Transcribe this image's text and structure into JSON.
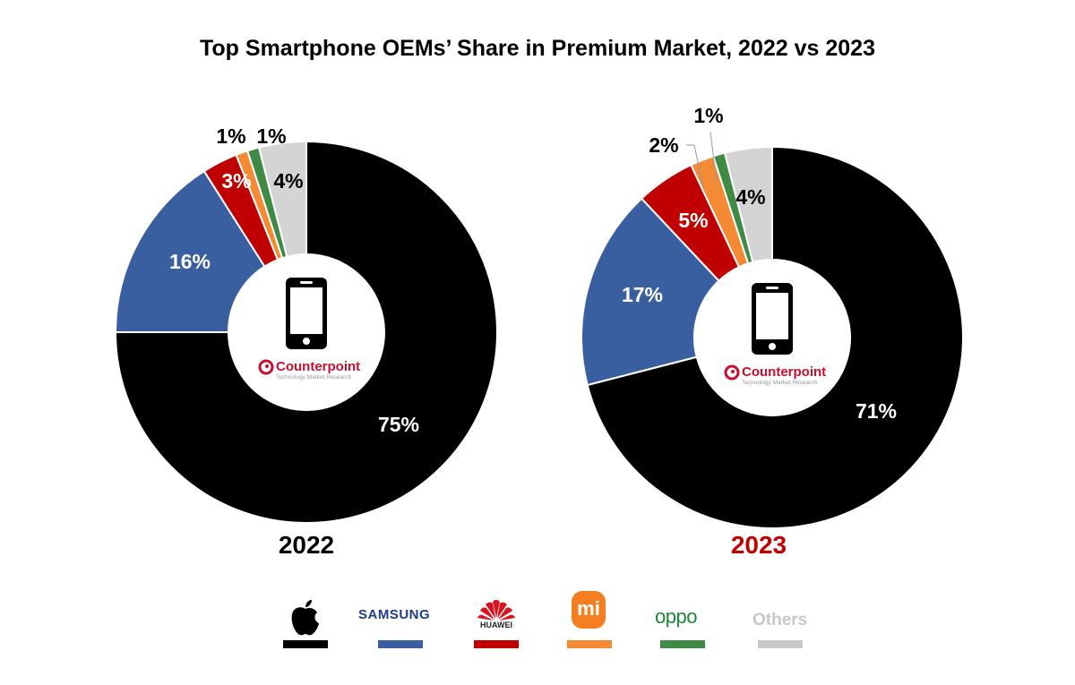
{
  "title": "Top Smartphone OEMs’ Share in Premium Market, 2022 vs 2023",
  "center_logo": {
    "icon": "smartphone-icon",
    "brand": "Counterpoint",
    "tagline": "Technology Market Research",
    "brand_color": "#c8102e"
  },
  "chart_data": [
    {
      "type": "pie",
      "variant": "donut",
      "title": "2022",
      "title_color": "#000000",
      "categories": [
        "Apple",
        "Samsung",
        "Huawei",
        "Xiaomi",
        "Oppo",
        "Others"
      ],
      "values": [
        75,
        16,
        3,
        1,
        1,
        4
      ],
      "labels": [
        "75%",
        "16%",
        "3%",
        "1%",
        "1%",
        "4%"
      ],
      "start": "12 o'clock",
      "direction": "clockwise"
    },
    {
      "type": "pie",
      "variant": "donut",
      "title": "2023",
      "title_color": "#c00000",
      "categories": [
        "Apple",
        "Samsung",
        "Huawei",
        "Xiaomi",
        "Oppo",
        "Others"
      ],
      "values": [
        71,
        17,
        5,
        2,
        1,
        4
      ],
      "labels": [
        "71%",
        "17%",
        "5%",
        "2%",
        "1%",
        "4%"
      ],
      "start": "12 o'clock",
      "direction": "clockwise"
    }
  ],
  "legend": [
    {
      "name": "Apple",
      "logo": "apple-icon",
      "text": "",
      "color": "#000000"
    },
    {
      "name": "Samsung",
      "logo": "samsung-wordmark",
      "text": "SAMSUNG",
      "color": "#3a5fa0"
    },
    {
      "name": "Huawei",
      "logo": "huawei-icon",
      "text": "HUAWEI",
      "color": "#c00000"
    },
    {
      "name": "Xiaomi",
      "logo": "xiaomi-icon",
      "text": "mi",
      "color": "#f58a35"
    },
    {
      "name": "Oppo",
      "logo": "oppo-wordmark",
      "text": "oppo",
      "color": "#3f8a45"
    },
    {
      "name": "Others",
      "logo": "",
      "text": "Others",
      "color": "#c8c8c8"
    }
  ],
  "colors": [
    "#000000",
    "#3a5fa0",
    "#c00000",
    "#f58a35",
    "#3f8a45",
    "#d4d4d4"
  ]
}
